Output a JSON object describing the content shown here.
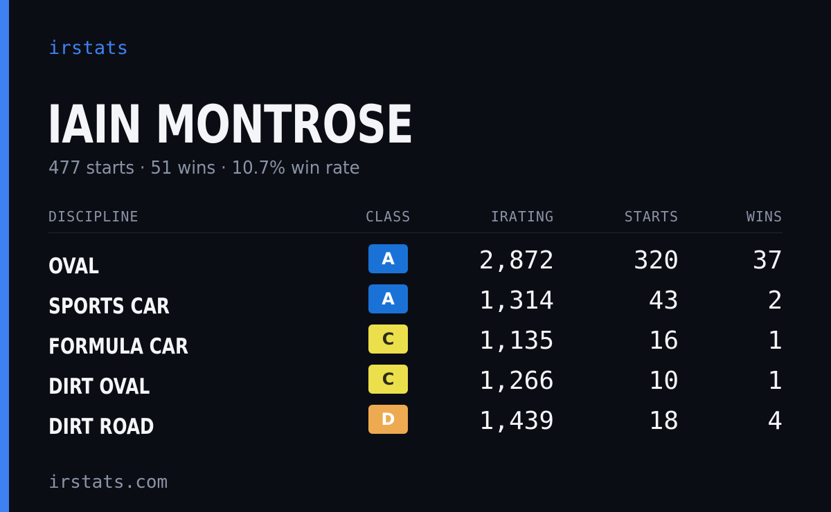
{
  "brand": "irstats",
  "driver": {
    "name": "IAIN MONTROSE",
    "starts_text": "477 starts",
    "wins_text": "51 wins",
    "win_rate_text": "10.7% win rate",
    "separator": "·"
  },
  "table": {
    "headers": {
      "discipline": "DISCIPLINE",
      "class": "CLASS",
      "irating": "IRATING",
      "starts": "STARTS",
      "wins": "WINS"
    },
    "rows": [
      {
        "discipline": "OVAL",
        "class": "A",
        "irating": "2,872",
        "starts": "320",
        "wins": "37"
      },
      {
        "discipline": "SPORTS CAR",
        "class": "A",
        "irating": "1,314",
        "starts": "43",
        "wins": "2"
      },
      {
        "discipline": "FORMULA CAR",
        "class": "C",
        "irating": "1,135",
        "starts": "16",
        "wins": "1"
      },
      {
        "discipline": "DIRT OVAL",
        "class": "C",
        "irating": "1,266",
        "starts": "10",
        "wins": "1"
      },
      {
        "discipline": "DIRT ROAD",
        "class": "D",
        "irating": "1,439",
        "starts": "18",
        "wins": "4"
      }
    ]
  },
  "footer": {
    "url": "irstats.com"
  },
  "colors": {
    "background": "#0b0d14",
    "accent": "#3d82f0",
    "class_A": "#1a72d6",
    "class_C": "#ebe04c",
    "class_D": "#eeaa50",
    "muted_text": "#8a93a6"
  }
}
